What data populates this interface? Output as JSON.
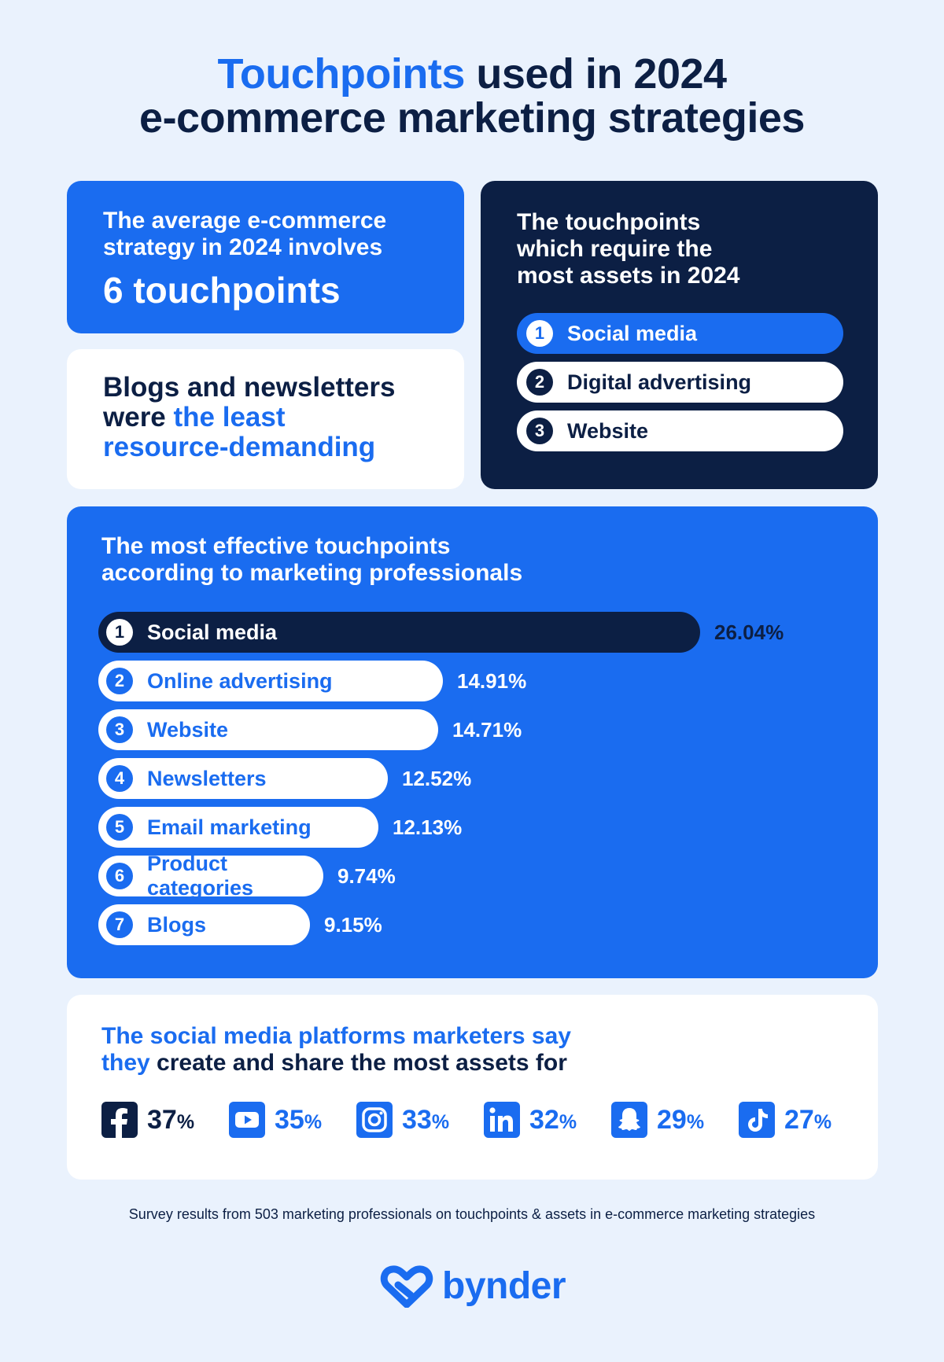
{
  "header": {
    "title_accent": "Touchpoints",
    "title_rest_line1": " used in 2024",
    "title_line2": "e-commerce marketing strategies"
  },
  "average_card": {
    "subtitle_line1": "The average e-commerce",
    "subtitle_line2": "strategy in 2024 involves",
    "headline": "6 touchpoints"
  },
  "blogs_card": {
    "line1": "Blogs and newsletters",
    "line2_plain": "were ",
    "line2_highlight": "the least",
    "line3_highlight": "resource-demanding"
  },
  "assets_card": {
    "heading_line1": "The touchpoints",
    "heading_line2": "which require the",
    "heading_line3": "most assets in 2024",
    "items": [
      {
        "rank": "1",
        "label": "Social media"
      },
      {
        "rank": "2",
        "label": "Digital advertising"
      },
      {
        "rank": "3",
        "label": "Website"
      }
    ]
  },
  "effective_card": {
    "heading_line1": "The most effective touchpoints",
    "heading_line2": "according to marketing professionals"
  },
  "chart_data": {
    "type": "bar",
    "orientation": "horizontal",
    "title": "The most effective touchpoints according to marketing professionals",
    "categories": [
      "Social media",
      "Online advertising",
      "Website",
      "Newsletters",
      "Email marketing",
      "Product categories",
      "Blogs"
    ],
    "ranks": [
      "1",
      "2",
      "3",
      "4",
      "5",
      "6",
      "7"
    ],
    "values": [
      26.04,
      14.91,
      14.71,
      12.52,
      12.13,
      9.74,
      9.15
    ],
    "value_labels": [
      "26.04%",
      "14.91%",
      "14.71%",
      "12.52%",
      "12.13%",
      "9.74%",
      "9.15%"
    ],
    "unit": "%"
  },
  "social_card": {
    "heading_highlight_line1": "The social media platforms marketers say",
    "heading_highlight_line2": "they",
    "heading_plain_line2": " create and share the most assets for",
    "platforms": [
      {
        "icon": "facebook-icon",
        "value": "37",
        "unit": "%",
        "style": "dark"
      },
      {
        "icon": "youtube-icon",
        "value": "35",
        "unit": "%",
        "style": "blue"
      },
      {
        "icon": "instagram-icon",
        "value": "33",
        "unit": "%",
        "style": "blue"
      },
      {
        "icon": "linkedin-icon",
        "value": "32",
        "unit": "%",
        "style": "blue"
      },
      {
        "icon": "snapchat-icon",
        "value": "29",
        "unit": "%",
        "style": "blue"
      },
      {
        "icon": "tiktok-icon",
        "value": "27",
        "unit": "%",
        "style": "blue"
      }
    ]
  },
  "footnote": "Survey results from 503 marketing professionals on touchpoints & assets in e-commerce marketing strategies",
  "brand": {
    "name": "bynder",
    "icon": "bynder-logo-icon"
  },
  "colors": {
    "accent": "#1a6cf0",
    "navy": "#0c1f44",
    "background": "#eaf2fd",
    "white": "#ffffff"
  }
}
